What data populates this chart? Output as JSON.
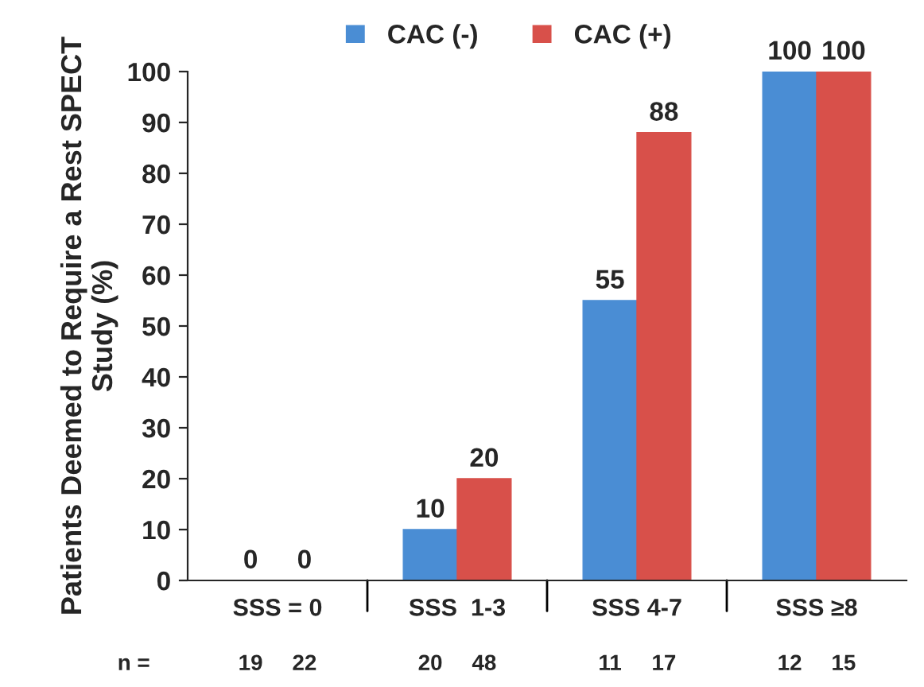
{
  "chart_data": {
    "type": "bar",
    "ylabel": "Patients Deemed to Require a Rest SPECT Study (%)",
    "categories": [
      "SSS = 0",
      "SSS  1-3",
      "SSS 4-7",
      "SSS ≥8"
    ],
    "series": [
      {
        "name": "CAC (-)",
        "color": "#4a8dd4",
        "values": [
          0,
          10,
          55,
          100
        ]
      },
      {
        "name": "CAC (+)",
        "color": "#d8504a",
        "values": [
          0,
          20,
          88,
          100
        ]
      }
    ],
    "ylim": [
      0,
      100
    ],
    "yticks": [
      0,
      10,
      20,
      30,
      40,
      50,
      60,
      70,
      80,
      90,
      100
    ],
    "data_labels": true,
    "grid": false,
    "legend": "top",
    "annotations": [
      "n =",
      "19",
      "22",
      "20",
      "48",
      "11",
      "17",
      "12",
      "15"
    ]
  }
}
